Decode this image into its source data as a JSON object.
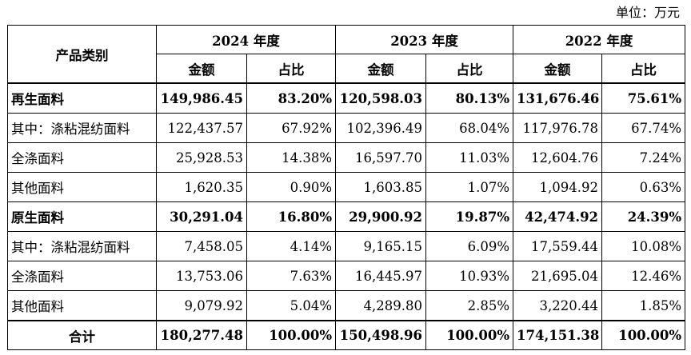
{
  "unit_note": "单位：万元",
  "header": {
    "category_label": "产品类别",
    "years": [
      "2024 年度",
      "2023 年度",
      "2022 年度"
    ],
    "amount_label": "金额",
    "share_label": "占比"
  },
  "rows": [
    {
      "name": "再生面料",
      "bold": true,
      "v": [
        "149,986.45",
        "83.20%",
        "120,598.03",
        "80.13%",
        "131,676.46",
        "75.61%"
      ]
    },
    {
      "name": "其中：涤粘混纺面料",
      "bold": false,
      "v": [
        "122,437.57",
        "67.92%",
        "102,396.49",
        "68.04%",
        "117,976.78",
        "67.74%"
      ]
    },
    {
      "name": "全涤面料",
      "bold": false,
      "v": [
        "25,928.53",
        "14.38%",
        "16,597.70",
        "11.03%",
        "12,604.76",
        "7.24%"
      ]
    },
    {
      "name": "其他面料",
      "bold": false,
      "v": [
        "1,620.35",
        "0.90%",
        "1,603.85",
        "1.07%",
        "1,094.92",
        "0.63%"
      ]
    },
    {
      "name": "原生面料",
      "bold": true,
      "v": [
        "30,291.04",
        "16.80%",
        "29,900.92",
        "19.87%",
        "42,474.92",
        "24.39%"
      ]
    },
    {
      "name": "其中：涤粘混纺面料",
      "bold": false,
      "v": [
        "7,458.05",
        "4.14%",
        "9,165.15",
        "6.09%",
        "17,559.44",
        "10.08%"
      ]
    },
    {
      "name": "全涤面料",
      "bold": false,
      "v": [
        "13,753.06",
        "7.63%",
        "16,445.97",
        "10.93%",
        "21,695.04",
        "12.46%"
      ]
    },
    {
      "name": "其他面料",
      "bold": false,
      "v": [
        "9,079.92",
        "5.04%",
        "4,289.80",
        "2.85%",
        "3,220.44",
        "1.85%"
      ]
    }
  ],
  "total": {
    "name": "合计",
    "v": [
      "180,277.48",
      "100.00%",
      "150,498.96",
      "100.00%",
      "174,151.38",
      "100.00%"
    ]
  }
}
